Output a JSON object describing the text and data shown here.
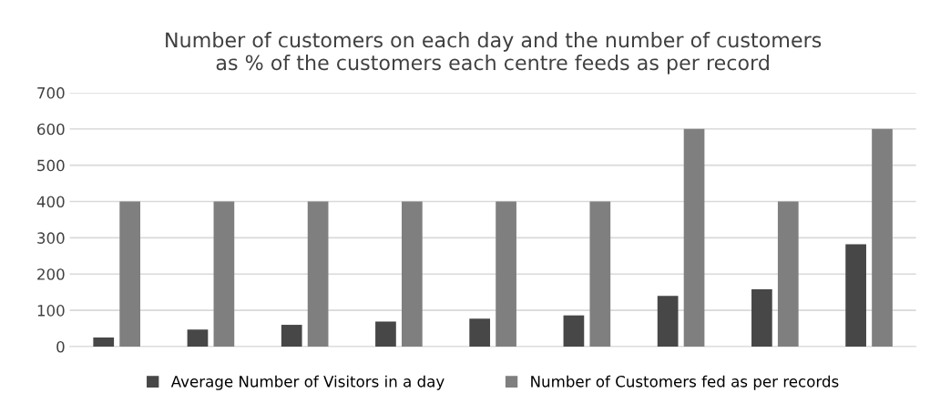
{
  "chart_data": {
    "type": "bar",
    "title": "Number of customers on each day and the number of customers\nas % of the customers each centre feeds as per record",
    "categories": [
      null,
      null,
      null,
      null,
      null,
      null,
      null,
      null,
      null
    ],
    "series": [
      {
        "name": "Average Number of Visitors in a day",
        "color": "#474747",
        "values": [
          25,
          47,
          60,
          69,
          77,
          86,
          140,
          158,
          282
        ]
      },
      {
        "name": "Number of Customers fed as per records",
        "color": "#7f7f7f",
        "values": [
          400,
          400,
          400,
          400,
          400,
          400,
          600,
          400,
          600
        ]
      }
    ],
    "ylim": [
      0,
      700
    ],
    "yticks": [
      0,
      100,
      200,
      300,
      400,
      500,
      600,
      700
    ],
    "grid": "y",
    "legend": "bottom"
  }
}
